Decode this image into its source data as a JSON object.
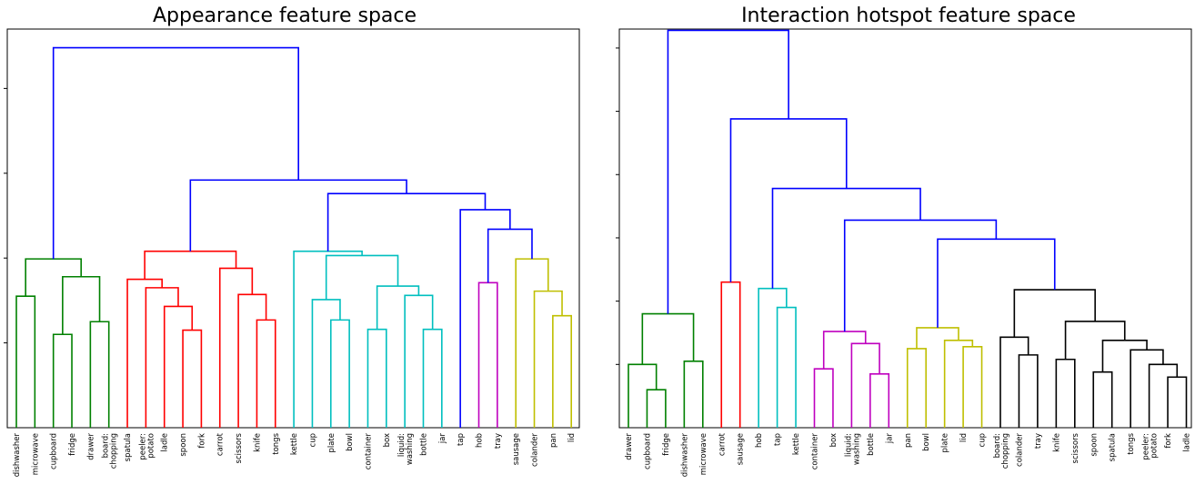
{
  "chart_data": [
    {
      "type": "dendrogram",
      "title": "Appearance feature space",
      "grid": false,
      "leaves": [
        "dishwasher",
        "microwave",
        "cupboard",
        "fridge",
        "drawer",
        "board:\nchopping",
        "spatula",
        "peeler:\npotato",
        "ladle",
        "spoon",
        "fork",
        "carrot",
        "scissors",
        "knife",
        "tongs",
        "kettle",
        "cup",
        "plate",
        "bowl",
        "container",
        "box",
        "liquid:\nwashing",
        "bottle",
        "jar",
        "tap",
        "hob",
        "tray",
        "sausage",
        "colander",
        "pan",
        "lid"
      ],
      "ylim": [
        0,
        4.7
      ],
      "yticks": [
        1,
        2,
        3,
        4
      ],
      "colors": {
        "green": "#008000",
        "red": "#ff0000",
        "cyan": "#00bfbf",
        "blue": "#0000ff",
        "magenta": "#bf00bf",
        "olive": "#bfbf00",
        "black": "#000000"
      },
      "merges": [
        {
          "a": 0,
          "b": 1,
          "h": 1.55,
          "color": "green"
        },
        {
          "a": 2,
          "b": 3,
          "h": 1.1,
          "color": "green"
        },
        {
          "a": 4,
          "b": 5,
          "h": 1.25,
          "color": "green"
        },
        {
          "a": 32,
          "b": 33,
          "h": 1.78,
          "color": "green"
        },
        {
          "a": 31,
          "b": 34,
          "h": 1.99,
          "color": "green"
        },
        {
          "a": 9,
          "b": 10,
          "h": 1.15,
          "color": "red"
        },
        {
          "a": 8,
          "b": 36,
          "h": 1.43,
          "color": "red"
        },
        {
          "a": 7,
          "b": 37,
          "h": 1.65,
          "color": "red"
        },
        {
          "a": 6,
          "b": 38,
          "h": 1.75,
          "color": "red"
        },
        {
          "a": 13,
          "b": 14,
          "h": 1.27,
          "color": "red"
        },
        {
          "a": 12,
          "b": 40,
          "h": 1.57,
          "color": "red"
        },
        {
          "a": 11,
          "b": 41,
          "h": 1.88,
          "color": "red"
        },
        {
          "a": 39,
          "b": 42,
          "h": 2.08,
          "color": "red"
        },
        {
          "a": 17,
          "b": 18,
          "h": 1.27,
          "color": "cyan"
        },
        {
          "a": 16,
          "b": 44,
          "h": 1.51,
          "color": "cyan"
        },
        {
          "a": 22,
          "b": 23,
          "h": 1.16,
          "color": "cyan"
        },
        {
          "a": 21,
          "b": 46,
          "h": 1.56,
          "color": "cyan"
        },
        {
          "a": 19,
          "b": 20,
          "h": 1.16,
          "color": "cyan"
        },
        {
          "a": 48,
          "b": 47,
          "h": 1.67,
          "color": "cyan"
        },
        {
          "a": 45,
          "b": 49,
          "h": 2.03,
          "color": "cyan"
        },
        {
          "a": 15,
          "b": 50,
          "h": 2.08,
          "color": "cyan"
        },
        {
          "a": 25,
          "b": 26,
          "h": 1.71,
          "color": "magenta"
        },
        {
          "a": 29,
          "b": 30,
          "h": 1.32,
          "color": "olive"
        },
        {
          "a": 28,
          "b": 53,
          "h": 1.61,
          "color": "olive"
        },
        {
          "a": 27,
          "b": 54,
          "h": 1.99,
          "color": "olive"
        },
        {
          "a": 52,
          "b": 55,
          "h": 2.34,
          "color": "blue"
        },
        {
          "a": 24,
          "b": 56,
          "h": 2.57,
          "color": "blue"
        },
        {
          "a": 51,
          "b": 57,
          "h": 2.76,
          "color": "blue"
        },
        {
          "a": 43,
          "b": 58,
          "h": 2.92,
          "color": "blue"
        },
        {
          "a": 35,
          "b": 59,
          "h": 4.48,
          "color": "blue"
        }
      ]
    },
    {
      "type": "dendrogram",
      "title": "Interaction hotspot feature space",
      "grid": false,
      "leaves": [
        "drawer",
        "cupboard",
        "fridge",
        "dishwasher",
        "microwave",
        "carrot",
        "sausage",
        "hob",
        "tap",
        "kettle",
        "container",
        "box",
        "liquid:\nwashing",
        "bottle",
        "jar",
        "pan",
        "bowl",
        "plate",
        "lid",
        "cup",
        "board:\nchopping",
        "colander",
        "tray",
        "knife",
        "scissors",
        "spoon",
        "spatula",
        "tongs",
        "peeler:\npotato",
        "fork",
        "ladle"
      ],
      "ylim": [
        0,
        6.3
      ],
      "yticks": [
        1,
        2,
        3,
        4,
        5,
        6
      ],
      "colors": {
        "green": "#008000",
        "red": "#ff0000",
        "cyan": "#00bfbf",
        "blue": "#0000ff",
        "magenta": "#bf00bf",
        "olive": "#bfbf00",
        "black": "#000000"
      },
      "merges": [
        {
          "a": 1,
          "b": 2,
          "h": 0.6,
          "color": "green"
        },
        {
          "a": 0,
          "b": 31,
          "h": 1.0,
          "color": "green"
        },
        {
          "a": 3,
          "b": 4,
          "h": 1.05,
          "color": "green"
        },
        {
          "a": 32,
          "b": 33,
          "h": 1.8,
          "color": "green"
        },
        {
          "a": 5,
          "b": 6,
          "h": 2.3,
          "color": "red"
        },
        {
          "a": 8,
          "b": 9,
          "h": 1.9,
          "color": "cyan"
        },
        {
          "a": 7,
          "b": 36,
          "h": 2.2,
          "color": "cyan"
        },
        {
          "a": 13,
          "b": 14,
          "h": 0.85,
          "color": "magenta"
        },
        {
          "a": 12,
          "b": 38,
          "h": 1.33,
          "color": "magenta"
        },
        {
          "a": 10,
          "b": 11,
          "h": 0.93,
          "color": "magenta"
        },
        {
          "a": 40,
          "b": 39,
          "h": 1.52,
          "color": "magenta"
        },
        {
          "a": 18,
          "b": 19,
          "h": 1.28,
          "color": "olive"
        },
        {
          "a": 17,
          "b": 42,
          "h": 1.38,
          "color": "olive"
        },
        {
          "a": 15,
          "b": 16,
          "h": 1.25,
          "color": "olive"
        },
        {
          "a": 44,
          "b": 43,
          "h": 1.58,
          "color": "olive"
        },
        {
          "a": 21,
          "b": 22,
          "h": 1.15,
          "color": "black"
        },
        {
          "a": 20,
          "b": 46,
          "h": 1.43,
          "color": "black"
        },
        {
          "a": 29,
          "b": 30,
          "h": 0.8,
          "color": "black"
        },
        {
          "a": 28,
          "b": 48,
          "h": 1.0,
          "color": "black"
        },
        {
          "a": 27,
          "b": 49,
          "h": 1.23,
          "color": "black"
        },
        {
          "a": 25,
          "b": 26,
          "h": 0.88,
          "color": "black"
        },
        {
          "a": 51,
          "b": 50,
          "h": 1.38,
          "color": "black"
        },
        {
          "a": 23,
          "b": 24,
          "h": 1.08,
          "color": "black"
        },
        {
          "a": 53,
          "b": 52,
          "h": 1.68,
          "color": "black"
        },
        {
          "a": 47,
          "b": 54,
          "h": 2.18,
          "color": "black"
        },
        {
          "a": 45,
          "b": 55,
          "h": 2.98,
          "color": "blue"
        },
        {
          "a": 41,
          "b": 56,
          "h": 3.28,
          "color": "blue"
        },
        {
          "a": 37,
          "b": 57,
          "h": 3.78,
          "color": "blue"
        },
        {
          "a": 35,
          "b": 58,
          "h": 4.88,
          "color": "blue"
        },
        {
          "a": 34,
          "b": 59,
          "h": 6.28,
          "color": "blue"
        }
      ]
    }
  ]
}
